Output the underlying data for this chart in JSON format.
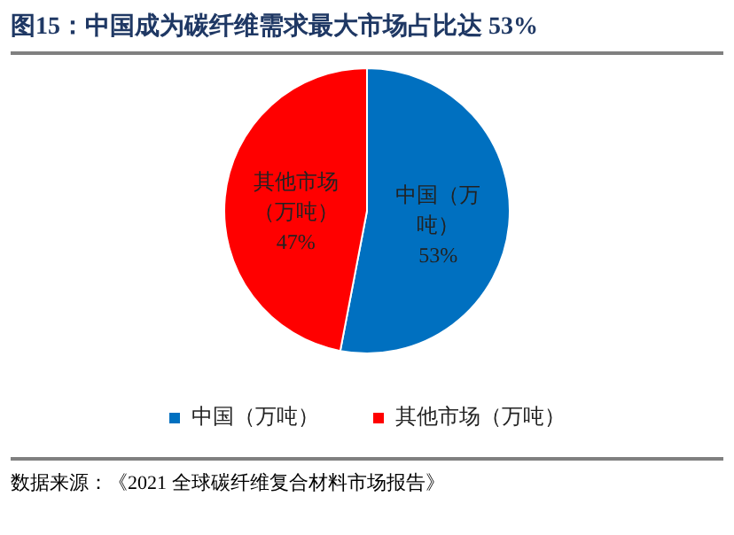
{
  "chart_data": {
    "type": "pie",
    "title": "图15：中国成为碳纤维需求最大市场占比达 53%",
    "categories": [
      "中国（万吨）",
      "其他市场（万吨）"
    ],
    "values": [
      53,
      47
    ],
    "colors": [
      "#0070c0",
      "#ff0000"
    ],
    "value_labels": [
      "53%",
      "47%"
    ],
    "legend": "bottom",
    "annotations": [
      "数据来源：《2021 全球碳纤维复合材料市场报告》"
    ]
  }
}
